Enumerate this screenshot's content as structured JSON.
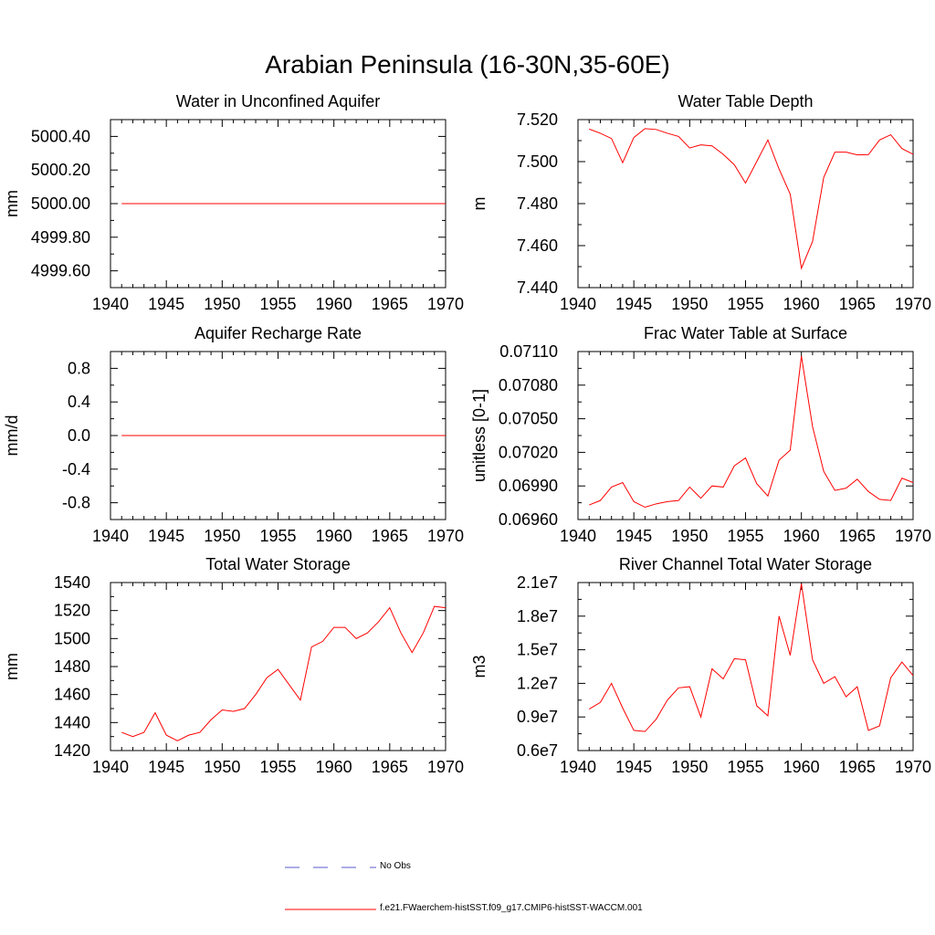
{
  "title": "Arabian Peninsula (16-30N,35-60E)",
  "legend": [
    {
      "label": "No Obs",
      "color": "#5a5acd",
      "style": "dashed"
    },
    {
      "label": "f.e21.FWaerchem-histSST.f09_g17.CMIP6-histSST-WACCM.001",
      "color": "#ff0000",
      "style": "solid"
    }
  ],
  "chart_data": [
    {
      "type": "line",
      "title": "Water in Unconfined Aquifer",
      "ylabel": "mm",
      "xlim": [
        1940,
        1970
      ],
      "ylim": [
        4999.5,
        5000.5
      ],
      "xticks": [
        1940,
        1945,
        1950,
        1955,
        1960,
        1965,
        1970
      ],
      "yticks": [
        4999.6,
        4999.8,
        5000.0,
        5000.2,
        5000.4
      ],
      "yticklabels": [
        "4999.60",
        "4999.80",
        "5000.00",
        "5000.20",
        "5000.40"
      ],
      "x": [
        1941,
        1942,
        1943,
        1944,
        1945,
        1946,
        1947,
        1948,
        1949,
        1950,
        1951,
        1952,
        1953,
        1954,
        1955,
        1956,
        1957,
        1958,
        1959,
        1960,
        1961,
        1962,
        1963,
        1964,
        1965,
        1966,
        1967,
        1968,
        1969,
        1970
      ],
      "series": [
        {
          "values": [
            5000,
            5000,
            5000,
            5000,
            5000,
            5000,
            5000,
            5000,
            5000,
            5000,
            5000,
            5000,
            5000,
            5000,
            5000,
            5000,
            5000,
            5000,
            5000,
            5000,
            5000,
            5000,
            5000,
            5000,
            5000,
            5000,
            5000,
            5000,
            5000,
            5000
          ],
          "color": "#ff0000"
        }
      ]
    },
    {
      "type": "line",
      "title": "Water Table Depth",
      "ylabel": "m",
      "xlim": [
        1940,
        1970
      ],
      "ylim": [
        7.44,
        7.52
      ],
      "xticks": [
        1940,
        1945,
        1950,
        1955,
        1960,
        1965,
        1970
      ],
      "yticks": [
        7.44,
        7.46,
        7.48,
        7.5,
        7.52
      ],
      "yticklabels": [
        "7.440",
        "7.460",
        "7.480",
        "7.500",
        "7.520"
      ],
      "x": [
        1941,
        1942,
        1943,
        1944,
        1945,
        1946,
        1947,
        1948,
        1949,
        1950,
        1951,
        1952,
        1953,
        1954,
        1955,
        1956,
        1957,
        1958,
        1959,
        1960,
        1961,
        1962,
        1963,
        1964,
        1965,
        1966,
        1967,
        1968,
        1969,
        1970
      ],
      "series": [
        {
          "values": [
            7.5155,
            7.5135,
            7.511,
            7.4995,
            7.5115,
            7.5157,
            7.5153,
            7.5135,
            7.512,
            7.5065,
            7.508,
            7.5075,
            7.5035,
            7.4985,
            7.4898,
            7.5,
            7.5103,
            7.4965,
            7.4845,
            7.4492,
            7.462,
            7.4925,
            7.5045,
            7.5045,
            7.5032,
            7.5033,
            7.5103,
            7.5128,
            7.5062,
            7.5035
          ],
          "color": "#ff0000"
        }
      ]
    },
    {
      "type": "line",
      "title": "Aquifer Recharge Rate",
      "ylabel": "mm/d",
      "xlim": [
        1940,
        1970
      ],
      "ylim": [
        -1.0,
        1.0
      ],
      "xticks": [
        1940,
        1945,
        1950,
        1955,
        1960,
        1965,
        1970
      ],
      "yticks": [
        -0.8,
        -0.4,
        0.0,
        0.4,
        0.8
      ],
      "yticklabels": [
        "-0.8",
        "-0.4",
        "0.0",
        "0.4",
        "0.8"
      ],
      "x": [
        1941,
        1942,
        1943,
        1944,
        1945,
        1946,
        1947,
        1948,
        1949,
        1950,
        1951,
        1952,
        1953,
        1954,
        1955,
        1956,
        1957,
        1958,
        1959,
        1960,
        1961,
        1962,
        1963,
        1964,
        1965,
        1966,
        1967,
        1968,
        1969,
        1970
      ],
      "series": [
        {
          "values": [
            0,
            0,
            0,
            0,
            0,
            0,
            0,
            0,
            0,
            0,
            0,
            0,
            0,
            0,
            0,
            0,
            0,
            0,
            0,
            0,
            0,
            0,
            0,
            0,
            0,
            0,
            0,
            0,
            0,
            0
          ],
          "color": "#ff0000"
        }
      ]
    },
    {
      "type": "line",
      "title": "Frac Water Table at Surface",
      "ylabel": "unitless [0-1]",
      "xlim": [
        1940,
        1970
      ],
      "ylim": [
        0.0696,
        0.0711
      ],
      "xticks": [
        1940,
        1945,
        1950,
        1955,
        1960,
        1965,
        1970
      ],
      "yticks": [
        0.0696,
        0.0699,
        0.0702,
        0.0705,
        0.0708,
        0.0711
      ],
      "yticklabels": [
        "0.06960",
        "0.06990",
        "0.07020",
        "0.07050",
        "0.07080",
        "0.07110"
      ],
      "x": [
        1941,
        1942,
        1943,
        1944,
        1945,
        1946,
        1947,
        1948,
        1949,
        1950,
        1951,
        1952,
        1953,
        1954,
        1955,
        1956,
        1957,
        1958,
        1959,
        1960,
        1961,
        1962,
        1963,
        1964,
        1965,
        1966,
        1967,
        1968,
        1969,
        1970
      ],
      "series": [
        {
          "values": [
            0.06973,
            0.06977,
            0.06989,
            0.06993,
            0.06976,
            0.06971,
            0.06974,
            0.06976,
            0.06977,
            0.06989,
            0.06979,
            0.0699,
            0.06989,
            0.07008,
            0.07015,
            0.06992,
            0.06981,
            0.07013,
            0.07022,
            0.07106,
            0.07043,
            0.07003,
            0.06986,
            0.06988,
            0.06996,
            0.06985,
            0.06978,
            0.06977,
            0.06997,
            0.06993
          ],
          "color": "#ff0000"
        }
      ]
    },
    {
      "type": "line",
      "title": "Total Water Storage",
      "ylabel": "mm",
      "xlim": [
        1940,
        1970
      ],
      "ylim": [
        1420,
        1540
      ],
      "xticks": [
        1940,
        1945,
        1950,
        1955,
        1960,
        1965,
        1970
      ],
      "yticks": [
        1420,
        1440,
        1460,
        1480,
        1500,
        1520,
        1540
      ],
      "yticklabels": [
        "1420",
        "1440",
        "1460",
        "1480",
        "1500",
        "1520",
        "1540"
      ],
      "x": [
        1941,
        1942,
        1943,
        1944,
        1945,
        1946,
        1947,
        1948,
        1949,
        1950,
        1951,
        1952,
        1953,
        1954,
        1955,
        1956,
        1957,
        1958,
        1959,
        1960,
        1961,
        1962,
        1963,
        1964,
        1965,
        1966,
        1967,
        1968,
        1969,
        1970
      ],
      "series": [
        {
          "values": [
            1433,
            1430,
            1433,
            1447,
            1431,
            1427,
            1431,
            1433,
            1442,
            1449,
            1448,
            1450,
            1460,
            1472,
            1478,
            1467,
            1456,
            1494,
            1498,
            1508,
            1508,
            1500,
            1504,
            1512,
            1522,
            1504,
            1490,
            1504,
            1523,
            1522
          ],
          "color": "#ff0000"
        }
      ]
    },
    {
      "type": "line",
      "title": "River Channel Total Water Storage",
      "ylabel": "m3",
      "xlim": [
        1940,
        1970
      ],
      "ylim": [
        6000000,
        21000000
      ],
      "xticks": [
        1940,
        1945,
        1950,
        1955,
        1960,
        1965,
        1970
      ],
      "yticks": [
        6000000,
        9000000,
        12000000,
        15000000,
        18000000,
        21000000
      ],
      "yticklabels": [
        "0.6e7",
        "0.9e7",
        "1.2e7",
        "1.5e7",
        "1.8e7",
        "2.1e7"
      ],
      "x": [
        1941,
        1942,
        1943,
        1944,
        1945,
        1946,
        1947,
        1948,
        1949,
        1950,
        1951,
        1952,
        1953,
        1954,
        1955,
        1956,
        1957,
        1958,
        1959,
        1960,
        1961,
        1962,
        1963,
        1964,
        1965,
        1966,
        1967,
        1968,
        1969,
        1970
      ],
      "series": [
        {
          "values": [
            9700000,
            10300000,
            12000000,
            9800000,
            7800000,
            7700000,
            8800000,
            10500000,
            11600000,
            11700000,
            9000000,
            13300000,
            12400000,
            14200000,
            14100000,
            10000000,
            9100000,
            18000000,
            14500000,
            20900000,
            14100000,
            12000000,
            12600000,
            10800000,
            11700000,
            7800000,
            8200000,
            12500000,
            13900000,
            12700000
          ],
          "color": "#ff0000"
        }
      ]
    }
  ]
}
